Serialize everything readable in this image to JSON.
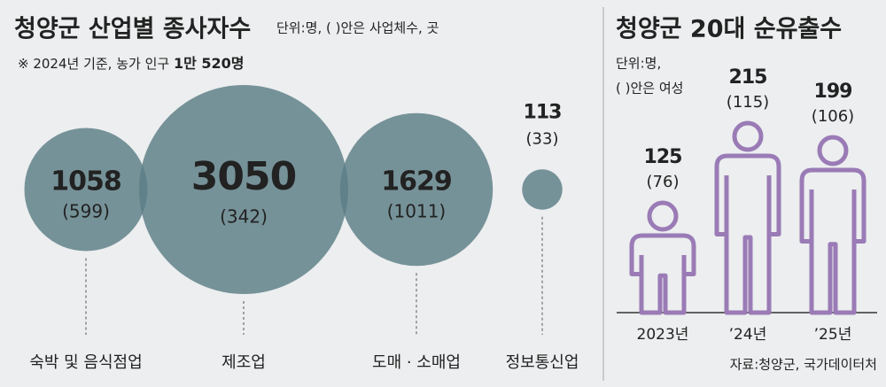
{
  "chart_data": [
    {
      "type": "bubble",
      "title": "청양군 산업별 종사자수",
      "subtitle": "단위:명, (   )안은 사업체수, 곳",
      "note": "※ 2024년 기준, 농가 인구",
      "note_emphasis": "1만 520명",
      "categories": [
        "숙박 및 음식점업",
        "제조업",
        "도매 · 소매업",
        "정보통신업"
      ],
      "values": [
        1058,
        3050,
        1629,
        113
      ],
      "business_counts": [
        599,
        342,
        1011,
        33
      ],
      "business_count_labels": [
        "(599)",
        "(342)",
        "(1011)",
        "(33)"
      ],
      "color": "#5b7e86"
    },
    {
      "type": "pictogram",
      "title": "청양군 20대 순유출수",
      "unit": "단위:명,",
      "unit_note": "(   )안은 여성",
      "categories": [
        "2023년",
        "’24년",
        "’25년"
      ],
      "values": [
        125,
        215,
        199
      ],
      "female_values": [
        76,
        115,
        106
      ],
      "female_value_labels": [
        "(76)",
        "(115)",
        "(106)"
      ],
      "color": "#9a7bb6",
      "source": "자료:청양군, 국가데이터처"
    }
  ]
}
